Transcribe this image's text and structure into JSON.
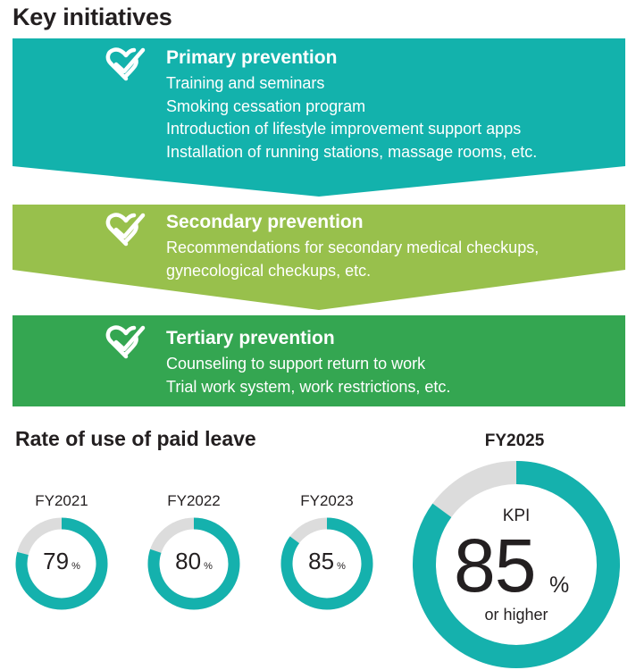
{
  "title": "Key initiatives",
  "colors": {
    "primary_band": "#13b2ac",
    "secondary_band": "#98c04c",
    "tertiary_band": "#34a651",
    "donut_fill": "#15b1ad",
    "donut_track": "#dcdcdc"
  },
  "initiatives": [
    {
      "heading": "Primary prevention",
      "icon": "heart-check-icon",
      "items": [
        "Training and seminars",
        "Smoking cessation program",
        "Introduction of lifestyle improvement support apps",
        "Installation of running stations, massage rooms, etc."
      ]
    },
    {
      "heading": "Secondary prevention",
      "icon": "heart-check-icon",
      "items": [
        "Recommendations for secondary medical checkups,",
        "gynecological checkups, etc."
      ]
    },
    {
      "heading": "Tertiary prevention",
      "icon": "heart-check-icon",
      "items": [
        "Counseling to support return to work",
        "Trial work system, work restrictions, etc."
      ]
    }
  ],
  "paid_leave": {
    "title": "Rate of use of paid leave",
    "unit": "%",
    "years": [
      {
        "label": "FY2021",
        "value": "79",
        "fraction": 0.79
      },
      {
        "label": "FY2022",
        "value": "80",
        "fraction": 0.8
      },
      {
        "label": "FY2023",
        "value": "85",
        "fraction": 0.85
      }
    ],
    "target": {
      "label": "FY2025",
      "kpi_label": "KPI",
      "value": "85",
      "unit": "%",
      "note": "or higher",
      "fraction": 0.85
    }
  }
}
